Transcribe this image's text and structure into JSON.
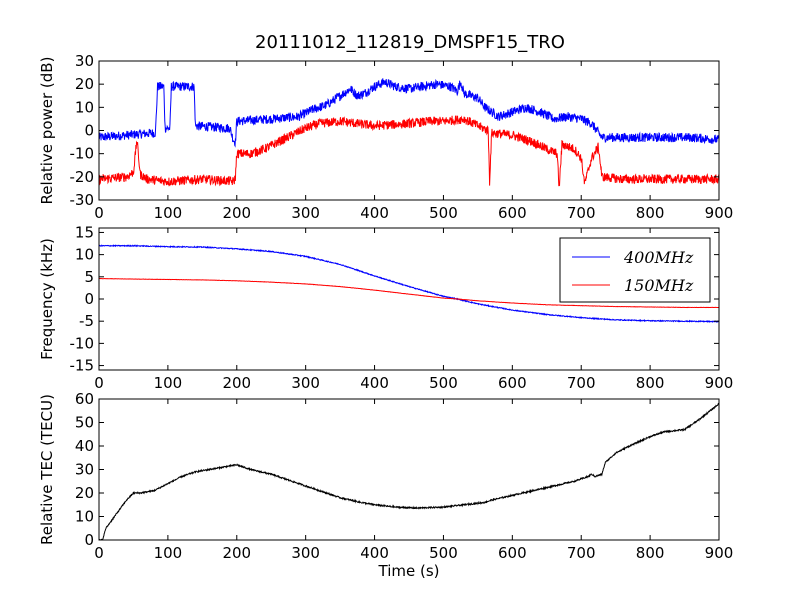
{
  "title": "20111012_112819_DMSPF15_TRO",
  "chart_data": [
    {
      "type": "line",
      "ylabel": "Relative power (dB)",
      "xlabel": "",
      "xlim": [
        0,
        900
      ],
      "ylim": [
        -30,
        30
      ],
      "xticks": [
        0,
        100,
        200,
        300,
        400,
        500,
        600,
        700,
        800,
        900
      ],
      "yticks": [
        -30,
        -20,
        -10,
        0,
        10,
        20,
        30
      ],
      "series": [
        {
          "color": "#0000ff",
          "noise": 2.0,
          "points": [
            [
              0,
              -3
            ],
            [
              40,
              -2
            ],
            [
              82,
              -1
            ],
            [
              85,
              19
            ],
            [
              94,
              19
            ],
            [
              96,
              1
            ],
            [
              103,
              1
            ],
            [
              105,
              19
            ],
            [
              138,
              19
            ],
            [
              140,
              2
            ],
            [
              190,
              1
            ],
            [
              195,
              -4
            ],
            [
              198,
              -5
            ],
            [
              200,
              4
            ],
            [
              250,
              5
            ],
            [
              290,
              6
            ],
            [
              310,
              9
            ],
            [
              330,
              11
            ],
            [
              350,
              15
            ],
            [
              365,
              18
            ],
            [
              375,
              15
            ],
            [
              385,
              16
            ],
            [
              400,
              19
            ],
            [
              415,
              21
            ],
            [
              430,
              19
            ],
            [
              450,
              18
            ],
            [
              470,
              19
            ],
            [
              490,
              20
            ],
            [
              510,
              19
            ],
            [
              520,
              17
            ],
            [
              525,
              21
            ],
            [
              530,
              16
            ],
            [
              550,
              14
            ],
            [
              560,
              10
            ],
            [
              580,
              6
            ],
            [
              600,
              8
            ],
            [
              620,
              10
            ],
            [
              630,
              9
            ],
            [
              640,
              8
            ],
            [
              660,
              5
            ],
            [
              680,
              6
            ],
            [
              700,
              5
            ],
            [
              715,
              3
            ],
            [
              730,
              -3
            ],
            [
              760,
              -3
            ],
            [
              800,
              -3
            ],
            [
              860,
              -3
            ],
            [
              900,
              -4
            ]
          ]
        },
        {
          "color": "#ff0000",
          "noise": 2.0,
          "points": [
            [
              0,
              -21
            ],
            [
              40,
              -20
            ],
            [
              50,
              -18
            ],
            [
              55,
              -4
            ],
            [
              60,
              -19
            ],
            [
              70,
              -21
            ],
            [
              100,
              -22
            ],
            [
              150,
              -21
            ],
            [
              196,
              -22
            ],
            [
              198,
              -20
            ],
            [
              200,
              -10
            ],
            [
              220,
              -10
            ],
            [
              240,
              -8
            ],
            [
              260,
              -5
            ],
            [
              280,
              -2
            ],
            [
              300,
              1
            ],
            [
              320,
              3
            ],
            [
              350,
              4
            ],
            [
              400,
              2
            ],
            [
              450,
              3
            ],
            [
              480,
              4
            ],
            [
              500,
              4
            ],
            [
              530,
              5
            ],
            [
              550,
              2
            ],
            [
              565,
              0
            ],
            [
              567,
              -22
            ],
            [
              570,
              -1
            ],
            [
              600,
              -2
            ],
            [
              630,
              -5
            ],
            [
              650,
              -8
            ],
            [
              665,
              -10
            ],
            [
              668,
              -25
            ],
            [
              672,
              -6
            ],
            [
              690,
              -8
            ],
            [
              700,
              -12
            ],
            [
              705,
              -23
            ],
            [
              715,
              -12
            ],
            [
              725,
              -7
            ],
            [
              730,
              -20
            ],
            [
              760,
              -21
            ],
            [
              800,
              -21
            ],
            [
              860,
              -21
            ],
            [
              900,
              -21
            ]
          ]
        }
      ]
    },
    {
      "type": "line",
      "ylabel": "Frequency (kHz)",
      "xlabel": "",
      "xlim": [
        0,
        900
      ],
      "ylim": [
        -16,
        16
      ],
      "xticks": [
        0,
        100,
        200,
        300,
        400,
        500,
        600,
        700,
        800,
        900
      ],
      "yticks": [
        -15,
        -10,
        -5,
        0,
        5,
        10,
        15
      ],
      "legend": "top-right",
      "series": [
        {
          "name": "400MHz",
          "color": "#0000ff",
          "noise": 0.1,
          "points": [
            [
              0,
              12
            ],
            [
              50,
              12
            ],
            [
              100,
              11.8
            ],
            [
              150,
              11.7
            ],
            [
              200,
              11.3
            ],
            [
              250,
              10.7
            ],
            [
              300,
              9.6
            ],
            [
              350,
              7.8
            ],
            [
              400,
              5.2
            ],
            [
              450,
              2.8
            ],
            [
              500,
              0.6
            ],
            [
              520,
              0
            ],
            [
              550,
              -1.1
            ],
            [
              600,
              -2.5
            ],
            [
              650,
              -3.5
            ],
            [
              700,
              -4.2
            ],
            [
              750,
              -4.7
            ],
            [
              800,
              -4.9
            ],
            [
              850,
              -5
            ],
            [
              900,
              -5.1
            ]
          ]
        },
        {
          "name": "150MHz",
          "color": "#ff0000",
          "noise": 0.03,
          "points": [
            [
              0,
              4.6
            ],
            [
              50,
              4.5
            ],
            [
              100,
              4.4
            ],
            [
              150,
              4.3
            ],
            [
              200,
              4.1
            ],
            [
              250,
              3.8
            ],
            [
              300,
              3.4
            ],
            [
              350,
              2.8
            ],
            [
              400,
              2
            ],
            [
              450,
              1.1
            ],
            [
              500,
              0.2
            ],
            [
              520,
              0
            ],
            [
              550,
              -0.4
            ],
            [
              600,
              -0.9
            ],
            [
              650,
              -1.3
            ],
            [
              700,
              -1.5
            ],
            [
              750,
              -1.7
            ],
            [
              800,
              -1.8
            ],
            [
              850,
              -1.9
            ],
            [
              900,
              -1.9
            ]
          ]
        }
      ]
    },
    {
      "type": "line",
      "ylabel": "Relative TEC (TECU)",
      "xlabel": "Time (s)",
      "xlim": [
        0,
        900
      ],
      "ylim": [
        0,
        60
      ],
      "xticks": [
        0,
        100,
        200,
        300,
        400,
        500,
        600,
        700,
        800,
        900
      ],
      "yticks": [
        0,
        10,
        20,
        30,
        40,
        50,
        60
      ],
      "series": [
        {
          "color": "#000000",
          "noise": 0.3,
          "points": [
            [
              0,
              0
            ],
            [
              5,
              0
            ],
            [
              10,
              5
            ],
            [
              20,
              9
            ],
            [
              30,
              13
            ],
            [
              40,
              17
            ],
            [
              50,
              20
            ],
            [
              60,
              20
            ],
            [
              80,
              21
            ],
            [
              100,
              24
            ],
            [
              120,
              27
            ],
            [
              140,
              29
            ],
            [
              160,
              30
            ],
            [
              180,
              31
            ],
            [
              200,
              32
            ],
            [
              220,
              30
            ],
            [
              250,
              28
            ],
            [
              280,
              25
            ],
            [
              300,
              23
            ],
            [
              330,
              20
            ],
            [
              350,
              18
            ],
            [
              380,
              16
            ],
            [
              400,
              15
            ],
            [
              430,
              14
            ],
            [
              460,
              13.6
            ],
            [
              500,
              14
            ],
            [
              530,
              15
            ],
            [
              560,
              16
            ],
            [
              570,
              17
            ],
            [
              600,
              19
            ],
            [
              630,
              21
            ],
            [
              660,
              23
            ],
            [
              690,
              25
            ],
            [
              710,
              27
            ],
            [
              715,
              28
            ],
            [
              720,
              27
            ],
            [
              730,
              28
            ],
            [
              735,
              33
            ],
            [
              750,
              37
            ],
            [
              770,
              40
            ],
            [
              800,
              44
            ],
            [
              820,
              46
            ],
            [
              850,
              47
            ],
            [
              870,
              51
            ],
            [
              900,
              58
            ]
          ]
        }
      ]
    }
  ]
}
